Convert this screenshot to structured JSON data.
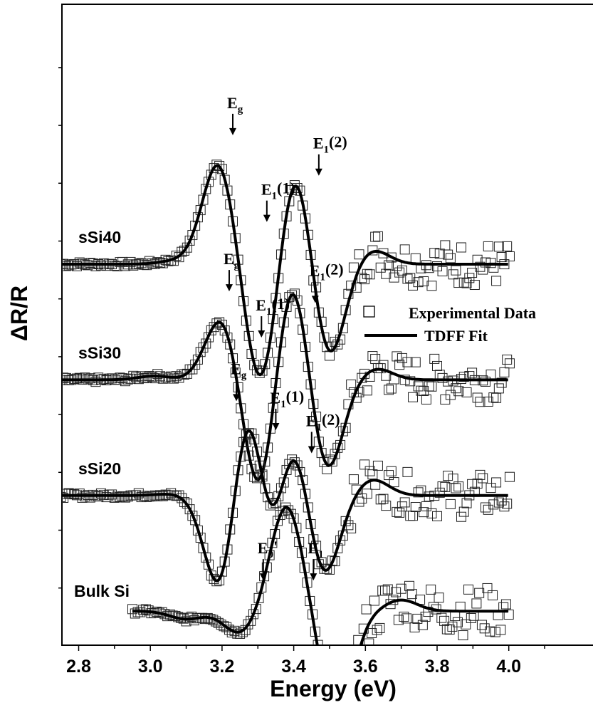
{
  "chart_data": {
    "type": "line",
    "title": "",
    "xlabel": "Energy (eV)",
    "ylabel": "ΔR/R",
    "xlim": [
      2.72,
      4.12
    ],
    "x_ticks": [
      "2.8",
      "3.0",
      "3.2",
      "3.4",
      "3.6",
      "3.8",
      "4.0"
    ],
    "x_tick_values": [
      2.8,
      3.0,
      3.2,
      3.4,
      3.6,
      3.8,
      4.0
    ],
    "legend": {
      "placement": "right-middle",
      "entries": [
        {
          "label": "Experimental Data",
          "marker": "open-square"
        },
        {
          "label": "TDFF Fit",
          "marker": "line"
        }
      ]
    },
    "series": [
      {
        "name": "sSi40",
        "baseline": 8.6,
        "x_range": [
          2.75,
          4.0
        ],
        "fit_peaks": [
          {
            "e": 3.07,
            "a": 0.1
          },
          {
            "e": 3.19,
            "a": 3.2
          },
          {
            "e": 3.31,
            "a": -3.9
          },
          {
            "e": 3.405,
            "a": 3.3
          },
          {
            "e": 3.495,
            "a": -3.1
          },
          {
            "e": 3.62,
            "a": 0.45
          }
        ],
        "transitions": [
          {
            "label": "E",
            "sub": "g",
            "sup": "",
            "energy": 3.23,
            "level": 11.2
          },
          {
            "label": "E",
            "sub": "1",
            "sup": "(1)",
            "energy": 3.325,
            "level": 9.7
          },
          {
            "label": "E",
            "sub": "1",
            "sup": "(2)",
            "energy": 3.47,
            "level": 10.5
          }
        ]
      },
      {
        "name": "sSi30",
        "baseline": 6.6,
        "x_range": [
          2.75,
          4.0
        ],
        "fit_peaks": [
          {
            "e": 3.01,
            "a": 0.12
          },
          {
            "e": 3.2,
            "a": 2.0
          },
          {
            "e": 3.305,
            "a": -3.7
          },
          {
            "e": 3.395,
            "a": 3.5
          },
          {
            "e": 3.49,
            "a": -3.0
          },
          {
            "e": 3.63,
            "a": 0.35
          }
        ],
        "transitions": [
          {
            "label": "E",
            "sub": "g",
            "sup": "",
            "energy": 3.22,
            "level": 8.5
          },
          {
            "label": "E",
            "sub": "1",
            "sup": "(1)",
            "energy": 3.31,
            "level": 7.7
          },
          {
            "label": "E",
            "sub": "1",
            "sup": "(2)",
            "energy": 3.46,
            "level": 8.3
          }
        ]
      },
      {
        "name": "sSi20",
        "baseline": 4.6,
        "x_range": [
          2.75,
          4.0
        ],
        "fit_peaks": [
          {
            "e": 3.06,
            "a": 0.05
          },
          {
            "e": 3.2,
            "a": -3.4
          },
          {
            "e": 3.275,
            "a": 4.0
          },
          {
            "e": 3.335,
            "a": -2.9
          },
          {
            "e": 3.395,
            "a": 2.6
          },
          {
            "e": 3.48,
            "a": -2.7
          },
          {
            "e": 3.62,
            "a": 0.5
          }
        ],
        "transitions": [
          {
            "label": "E",
            "sub": "g",
            "sup": "",
            "energy": 3.24,
            "level": 6.6
          },
          {
            "label": "E",
            "sub": "1",
            "sup": "(1)",
            "energy": 3.35,
            "level": 6.1
          },
          {
            "label": "E",
            "sub": "1",
            "sup": "(2)",
            "energy": 3.45,
            "level": 5.7
          }
        ]
      },
      {
        "name": "Bulk Si",
        "baseline": 2.6,
        "x_range": [
          2.95,
          4.0
        ],
        "fit_peaks": [
          {
            "e": 3.1,
            "a": -0.25
          },
          {
            "e": 3.25,
            "a": -0.7
          },
          {
            "e": 3.38,
            "a": 3.3
          },
          {
            "e": 3.52,
            "a": -3.3
          },
          {
            "e": 3.7,
            "a": 0.35
          }
        ],
        "transitions": [
          {
            "label": "E",
            "sub": "0",
            "sup": "'",
            "energy": 3.315,
            "level": 3.5
          },
          {
            "label": "E",
            "sub": "1",
            "sup": "",
            "energy": 3.455,
            "level": 3.5
          }
        ]
      }
    ]
  }
}
